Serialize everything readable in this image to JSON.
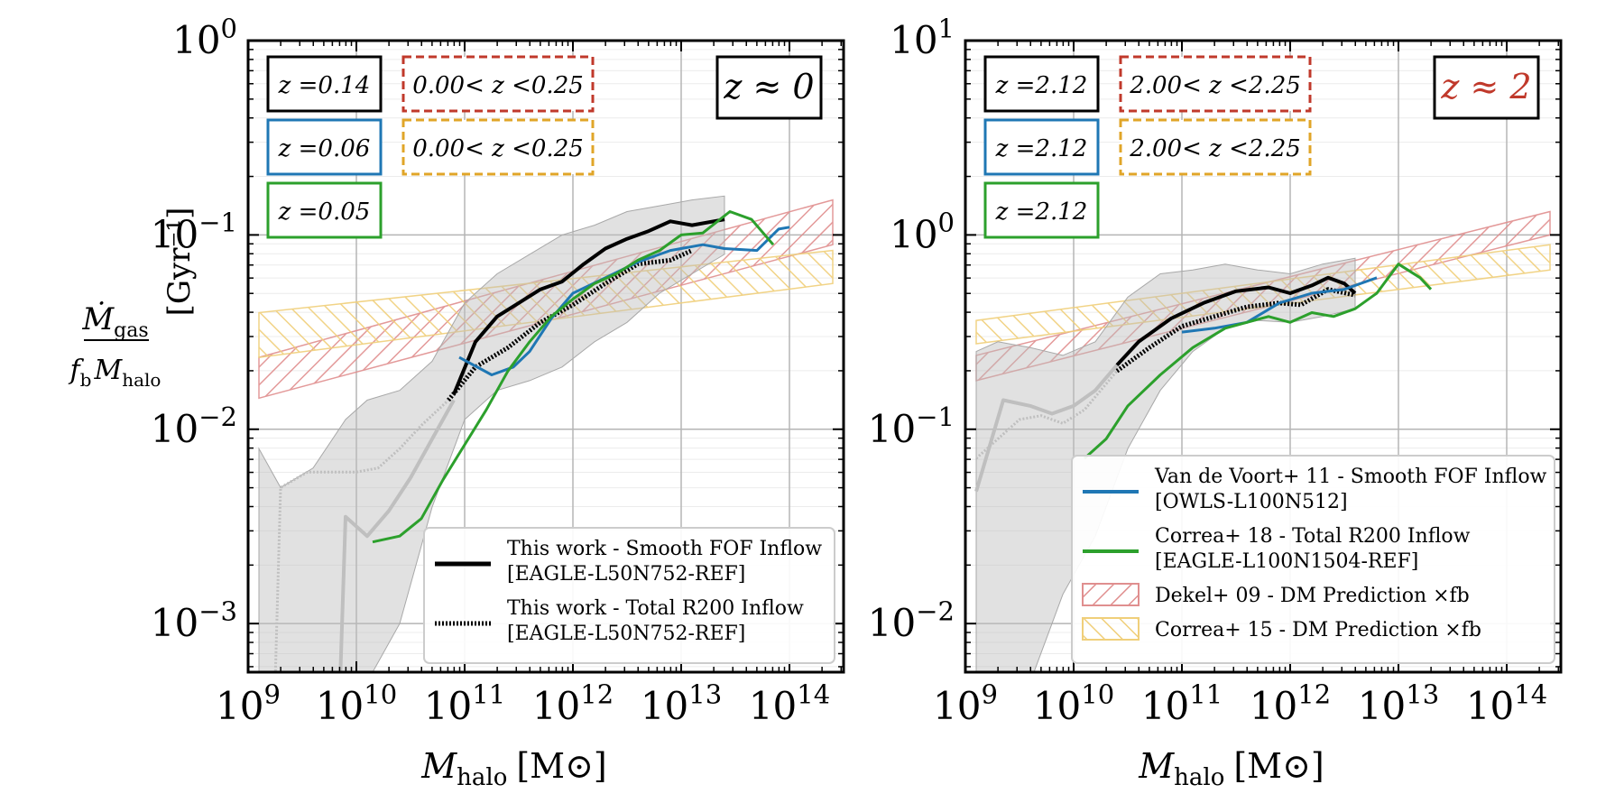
{
  "figure": {
    "ylabel_parts": {
      "numerator": "Ṁ",
      "numerator_sub": "gas",
      "denominator_pre": "f",
      "denominator_pre_sub": "b",
      "denominator": "M",
      "denominator_sub": "halo",
      "unit": "[Gyr⁻¹]"
    },
    "xlabel_parts": {
      "main": "M",
      "sub": "halo",
      "unit": "[M⊙]"
    }
  },
  "colors": {
    "this_work": "#000000",
    "van_de_voort": "#1f77b4",
    "correa18": "#2ca02c",
    "dekel09": "#c0392b",
    "correa15": "#e0a528",
    "scatter": "#bdbdbd",
    "z2_label": "#c0392b"
  },
  "legend": {
    "left": [
      {
        "key": "this_work_smooth",
        "line1": "This work - Smooth FOF Inflow",
        "line2": "[EAGLE-L50N752-REF]",
        "style": "solid-black"
      },
      {
        "key": "this_work_total",
        "line1": "This work - Total R200 Inflow",
        "line2": "[EAGLE-L50N752-REF]",
        "style": "dotted-black"
      }
    ],
    "right": [
      {
        "key": "vdv",
        "line1": "Van de Voort+ 11 - Smooth FOF Inflow",
        "line2": "[OWLS-L100N512]",
        "style": "solid-blue"
      },
      {
        "key": "correa18",
        "line1": "Correa+ 18 - Total R200 Inflow",
        "line2": "[EAGLE-L100N1504-REF]",
        "style": "solid-green"
      },
      {
        "key": "dekel",
        "line1": "Dekel+ 09 - DM Prediction ×fb",
        "style": "hatch-red"
      },
      {
        "key": "correa15",
        "line1": "Correa+ 15 - DM Prediction ×fb",
        "style": "hatch-yellow"
      }
    ]
  },
  "chart_data": [
    {
      "type": "line",
      "panel_label": "z ≈ 0",
      "xlabel": "M_halo [M_sun]",
      "ylabel": "Mdot_gas / (f_b M_halo) [Gyr^-1]",
      "xscale": "log",
      "yscale": "log",
      "xlim_log10": [
        9,
        14.5
      ],
      "ylim_log10": [
        -3.25,
        0
      ],
      "x_ticks": [
        "10^9",
        "10^10",
        "10^11",
        "10^12",
        "10^13",
        "10^14"
      ],
      "y_ticks": [
        "10^-3",
        "10^-2",
        "10^-1",
        "10^0"
      ],
      "redshift_boxes": [
        {
          "text": "z =0.14",
          "color": "#000000",
          "style": "solid"
        },
        {
          "text": "z =0.06",
          "color": "#1f77b4",
          "style": "solid"
        },
        {
          "text": "z =0.05",
          "color": "#2ca02c",
          "style": "solid"
        },
        {
          "text": "0.00< z <0.25",
          "color": "#c0392b",
          "style": "dashed"
        },
        {
          "text": "0.00< z <0.25",
          "color": "#e0a528",
          "style": "dashed"
        }
      ],
      "series": [
        {
          "name": "This work - Smooth FOF Inflow",
          "color": "#000000",
          "dash": "solid",
          "width": 4,
          "x": [
            10.9,
            11.1,
            11.3,
            11.5,
            11.7,
            11.9,
            12.1,
            12.3,
            12.5,
            12.7,
            12.9,
            13.1,
            13.4
          ],
          "y": [
            -1.82,
            -1.55,
            -1.42,
            -1.35,
            -1.28,
            -1.24,
            -1.15,
            -1.07,
            -1.02,
            -0.98,
            -0.93,
            -0.95,
            -0.92
          ]
        },
        {
          "name": "This work - Total R200 Inflow",
          "color": "#000000",
          "dash": "dotted",
          "width": 5,
          "x": [
            10.85,
            11.1,
            11.4,
            11.7,
            12.0,
            12.3,
            12.6,
            12.9,
            13.1
          ],
          "y": [
            -1.85,
            -1.68,
            -1.58,
            -1.45,
            -1.36,
            -1.25,
            -1.15,
            -1.13,
            -1.08
          ]
        },
        {
          "name": "This work - Smooth FOF (low-mass tail)",
          "color": "#bfbfbf",
          "dash": "solid",
          "width": 4,
          "x": [
            9.85,
            9.9,
            10.1,
            10.3,
            10.5,
            10.7,
            10.9
          ],
          "y": [
            -3.3,
            -2.45,
            -2.55,
            -2.42,
            -2.25,
            -2.05,
            -1.85
          ]
        },
        {
          "name": "This work - Total R200 (low-mass tail)",
          "color": "#bfbfbf",
          "dash": "dotted",
          "width": 3,
          "x": [
            9.25,
            9.3,
            9.55,
            9.8,
            10.0,
            10.2,
            10.4,
            10.6,
            10.85
          ],
          "y": [
            -3.3,
            -2.3,
            -2.22,
            -2.22,
            -2.22,
            -2.2,
            -2.1,
            -1.98,
            -1.85
          ]
        },
        {
          "name": "Van de Voort+ 11 - Smooth FOF Inflow",
          "color": "#1f77b4",
          "dash": "solid",
          "width": 3,
          "x": [
            10.95,
            11.25,
            11.45,
            11.6,
            11.8,
            12.0,
            12.3,
            12.6,
            12.9,
            13.2,
            13.4,
            13.7,
            13.9,
            14.0
          ],
          "y": [
            -1.63,
            -1.72,
            -1.68,
            -1.6,
            -1.43,
            -1.3,
            -1.22,
            -1.14,
            -1.08,
            -1.05,
            -1.07,
            -1.08,
            -0.97,
            -0.96
          ]
        },
        {
          "name": "Correa+ 18 - Total R200 Inflow",
          "color": "#2ca02c",
          "dash": "solid",
          "width": 3,
          "x": [
            10.15,
            10.4,
            10.6,
            10.8,
            11.0,
            11.2,
            11.4,
            11.6,
            11.8,
            12.0,
            12.2,
            12.4,
            12.6,
            12.8,
            13.0,
            13.2,
            13.45,
            13.65,
            13.85
          ],
          "y": [
            -2.58,
            -2.55,
            -2.46,
            -2.26,
            -2.08,
            -1.9,
            -1.7,
            -1.55,
            -1.42,
            -1.33,
            -1.25,
            -1.2,
            -1.13,
            -1.08,
            -1.0,
            -0.99,
            -0.88,
            -0.92,
            -1.05
          ]
        }
      ],
      "bands": [
        {
          "name": "Dekel+ 09 - DM Prediction x fb",
          "color": "#c0392b",
          "hatch": "////",
          "x_range": [
            9.1,
            14.4
          ],
          "lower": [
            -1.84,
            -1.05
          ],
          "upper": [
            -1.63,
            -0.82
          ]
        },
        {
          "name": "Correa+ 15 - DM Prediction x fb",
          "color": "#e0a528",
          "hatch": "\\\\\\\\",
          "x_range": [
            9.1,
            14.4
          ],
          "lower": [
            -1.63,
            -1.25
          ],
          "upper": [
            -1.4,
            -1.08
          ]
        },
        {
          "name": "Scatter (this work)",
          "color": "#bdbdbd",
          "x": [
            9.1,
            9.3,
            9.6,
            9.9,
            10.1,
            10.4,
            10.7,
            11.0,
            11.3,
            11.6,
            11.9,
            12.2,
            12.5,
            12.8,
            13.1,
            13.4
          ],
          "lower": [
            -3.3,
            -3.3,
            -3.3,
            -3.3,
            -3.3,
            -3.0,
            -2.4,
            -1.95,
            -1.8,
            -1.75,
            -1.68,
            -1.55,
            -1.45,
            -1.3,
            -1.2,
            -1.1
          ],
          "upper": [
            -2.1,
            -2.3,
            -2.2,
            -1.95,
            -1.85,
            -1.8,
            -1.65,
            -1.35,
            -1.2,
            -1.1,
            -1.0,
            -0.95,
            -0.88,
            -0.85,
            -0.82,
            -0.8
          ]
        }
      ]
    },
    {
      "type": "line",
      "panel_label": "z ≈ 2",
      "xlabel": "M_halo [M_sun]",
      "ylabel": "",
      "xscale": "log",
      "yscale": "log",
      "xlim_log10": [
        9,
        14.5
      ],
      "ylim_log10": [
        -2.25,
        1
      ],
      "x_ticks": [
        "10^9",
        "10^10",
        "10^11",
        "10^12",
        "10^13",
        "10^14"
      ],
      "y_ticks": [
        "10^-2",
        "10^-1",
        "10^0",
        "10^1"
      ],
      "redshift_boxes": [
        {
          "text": "z =2.12",
          "color": "#000000",
          "style": "solid"
        },
        {
          "text": "z =2.12",
          "color": "#1f77b4",
          "style": "solid"
        },
        {
          "text": "z =2.12",
          "color": "#2ca02c",
          "style": "solid"
        },
        {
          "text": "2.00< z <2.25",
          "color": "#c0392b",
          "style": "dashed"
        },
        {
          "text": "2.00< z <2.25",
          "color": "#e0a528",
          "style": "dashed"
        }
      ],
      "series": [
        {
          "name": "This work - Smooth FOF Inflow",
          "color": "#000000",
          "dash": "solid",
          "width": 4,
          "x": [
            10.4,
            10.6,
            10.9,
            11.2,
            11.5,
            11.8,
            12.0,
            12.2,
            12.35,
            12.5,
            12.6
          ],
          "y": [
            -0.67,
            -0.55,
            -0.43,
            -0.35,
            -0.29,
            -0.27,
            -0.3,
            -0.26,
            -0.22,
            -0.25,
            -0.3
          ]
        },
        {
          "name": "This work - Total R200 Inflow",
          "color": "#000000",
          "dash": "dotted",
          "width": 5,
          "x": [
            10.4,
            10.7,
            11.0,
            11.3,
            11.6,
            11.9,
            12.1,
            12.35,
            12.6
          ],
          "y": [
            -0.7,
            -0.58,
            -0.47,
            -0.42,
            -0.37,
            -0.35,
            -0.36,
            -0.28,
            -0.31
          ]
        },
        {
          "name": "This work - Smooth FOF (low-mass tail)",
          "color": "#bfbfbf",
          "dash": "solid",
          "width": 4,
          "x": [
            9.1,
            9.35,
            9.6,
            9.8,
            10.0,
            10.2,
            10.4
          ],
          "y": [
            -1.32,
            -0.85,
            -0.88,
            -0.92,
            -0.88,
            -0.8,
            -0.67
          ]
        },
        {
          "name": "This work - Total R200 (low-mass tail)",
          "color": "#bfbfbf",
          "dash": "dotted",
          "width": 3,
          "x": [
            9.1,
            9.3,
            9.5,
            9.7,
            9.9,
            10.1,
            10.4
          ],
          "y": [
            -1.15,
            -1.05,
            -0.95,
            -0.93,
            -0.97,
            -0.9,
            -0.7
          ]
        },
        {
          "name": "Van de Voort+ 11 - Smooth FOF Inflow",
          "color": "#1f77b4",
          "dash": "solid",
          "width": 3,
          "x": [
            11.0,
            11.3,
            11.6,
            11.9,
            12.2,
            12.5,
            12.8
          ],
          "y": [
            -0.5,
            -0.48,
            -0.45,
            -0.35,
            -0.3,
            -0.28,
            -0.22
          ]
        },
        {
          "name": "Correa+ 18 - Total R200 Inflow",
          "color": "#2ca02c",
          "dash": "solid",
          "width": 3,
          "x": [
            10.1,
            10.3,
            10.5,
            10.8,
            11.1,
            11.4,
            11.6,
            11.8,
            12.0,
            12.2,
            12.4,
            12.6,
            12.8,
            13.0,
            13.2,
            13.3
          ],
          "y": [
            -1.15,
            -1.05,
            -0.88,
            -0.72,
            -0.58,
            -0.48,
            -0.45,
            -0.42,
            -0.45,
            -0.4,
            -0.42,
            -0.38,
            -0.3,
            -0.15,
            -0.22,
            -0.28
          ]
        }
      ],
      "bands": [
        {
          "name": "Dekel+ 09 - DM Prediction x fb",
          "color": "#c0392b",
          "hatch": "////",
          "x_range": [
            9.1,
            14.4
          ],
          "lower": [
            -0.75,
            0.0
          ],
          "upper": [
            -0.62,
            0.12
          ]
        },
        {
          "name": "Correa+ 15 - DM Prediction x fb",
          "color": "#e0a528",
          "hatch": "\\\\\\\\",
          "x_range": [
            9.1,
            14.4
          ],
          "lower": [
            -0.56,
            -0.18
          ],
          "upper": [
            -0.44,
            -0.05
          ]
        },
        {
          "name": "Scatter (this work)",
          "color": "#bdbdbd",
          "x": [
            9.1,
            9.3,
            9.6,
            9.9,
            10.2,
            10.5,
            10.8,
            11.1,
            11.4,
            11.7,
            12.0,
            12.3,
            12.6
          ],
          "lower": [
            -2.3,
            -2.3,
            -2.3,
            -1.85,
            -1.55,
            -1.1,
            -0.8,
            -0.6,
            -0.48,
            -0.44,
            -0.45,
            -0.42,
            -0.38
          ],
          "upper": [
            -0.6,
            -0.55,
            -0.58,
            -0.62,
            -0.55,
            -0.32,
            -0.2,
            -0.18,
            -0.15,
            -0.18,
            -0.2,
            -0.15,
            -0.12
          ]
        }
      ]
    }
  ]
}
